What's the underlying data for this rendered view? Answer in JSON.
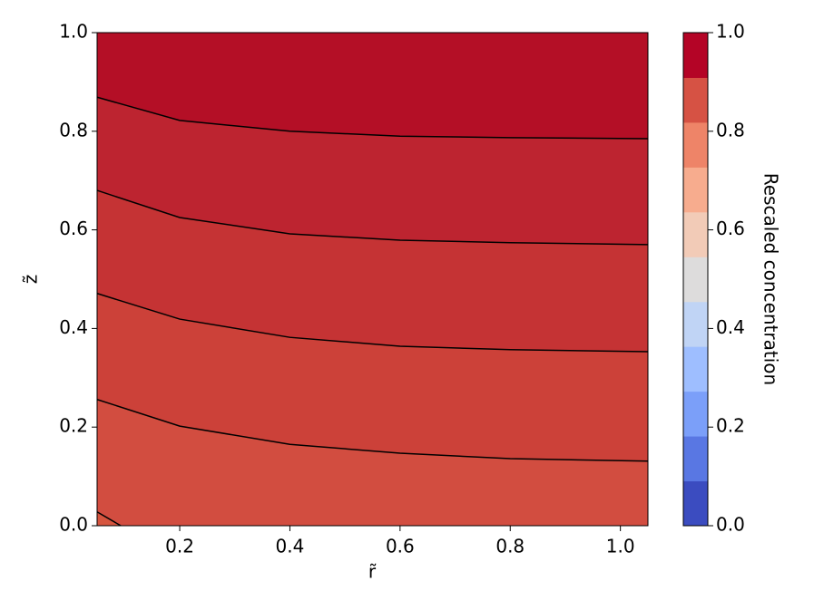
{
  "chart_data": {
    "type": "contourf",
    "xlabel": "r̃",
    "ylabel": "z̃",
    "xlim": [
      0.05,
      1.05
    ],
    "ylim": [
      0,
      1
    ],
    "xticks": [
      0.2,
      0.4,
      0.6,
      0.8,
      1.0
    ],
    "yticks": [
      0.0,
      0.2,
      0.4,
      0.6,
      0.8,
      1.0
    ],
    "band_colors": [
      "#b40f26",
      "#bd2430",
      "#c53334",
      "#cc4139",
      "#d24d40",
      "#d6553f"
    ],
    "line_color": "#000000",
    "contours": [
      {
        "x": [
          0.05,
          0.2,
          0.4,
          0.6,
          0.8,
          1.05
        ],
        "y": [
          0.869,
          0.822,
          0.8,
          0.79,
          0.787,
          0.785
        ]
      },
      {
        "x": [
          0.05,
          0.2,
          0.4,
          0.6,
          0.8,
          1.05
        ],
        "y": [
          0.68,
          0.625,
          0.592,
          0.579,
          0.574,
          0.57
        ]
      },
      {
        "x": [
          0.05,
          0.2,
          0.4,
          0.6,
          0.8,
          1.05
        ],
        "y": [
          0.471,
          0.419,
          0.382,
          0.364,
          0.357,
          0.353
        ]
      },
      {
        "x": [
          0.05,
          0.2,
          0.4,
          0.6,
          0.8,
          1.05
        ],
        "y": [
          0.256,
          0.202,
          0.165,
          0.147,
          0.136,
          0.131
        ]
      },
      {
        "x": [
          0.05,
          0.093
        ],
        "y": [
          0.028,
          0
        ]
      }
    ],
    "colorbar": {
      "label": "Rescaled concentration",
      "lim": [
        0,
        1
      ],
      "ticks": [
        0.0,
        0.2,
        0.4,
        0.6,
        0.8,
        1.0
      ],
      "colors": [
        "#3b4cc0",
        "#5977e3",
        "#7b9ff9",
        "#9ebeff",
        "#c0d4f5",
        "#dddcdc",
        "#f2cbb7",
        "#f7ac8e",
        "#ee8468",
        "#d65244",
        "#b40426"
      ]
    }
  }
}
